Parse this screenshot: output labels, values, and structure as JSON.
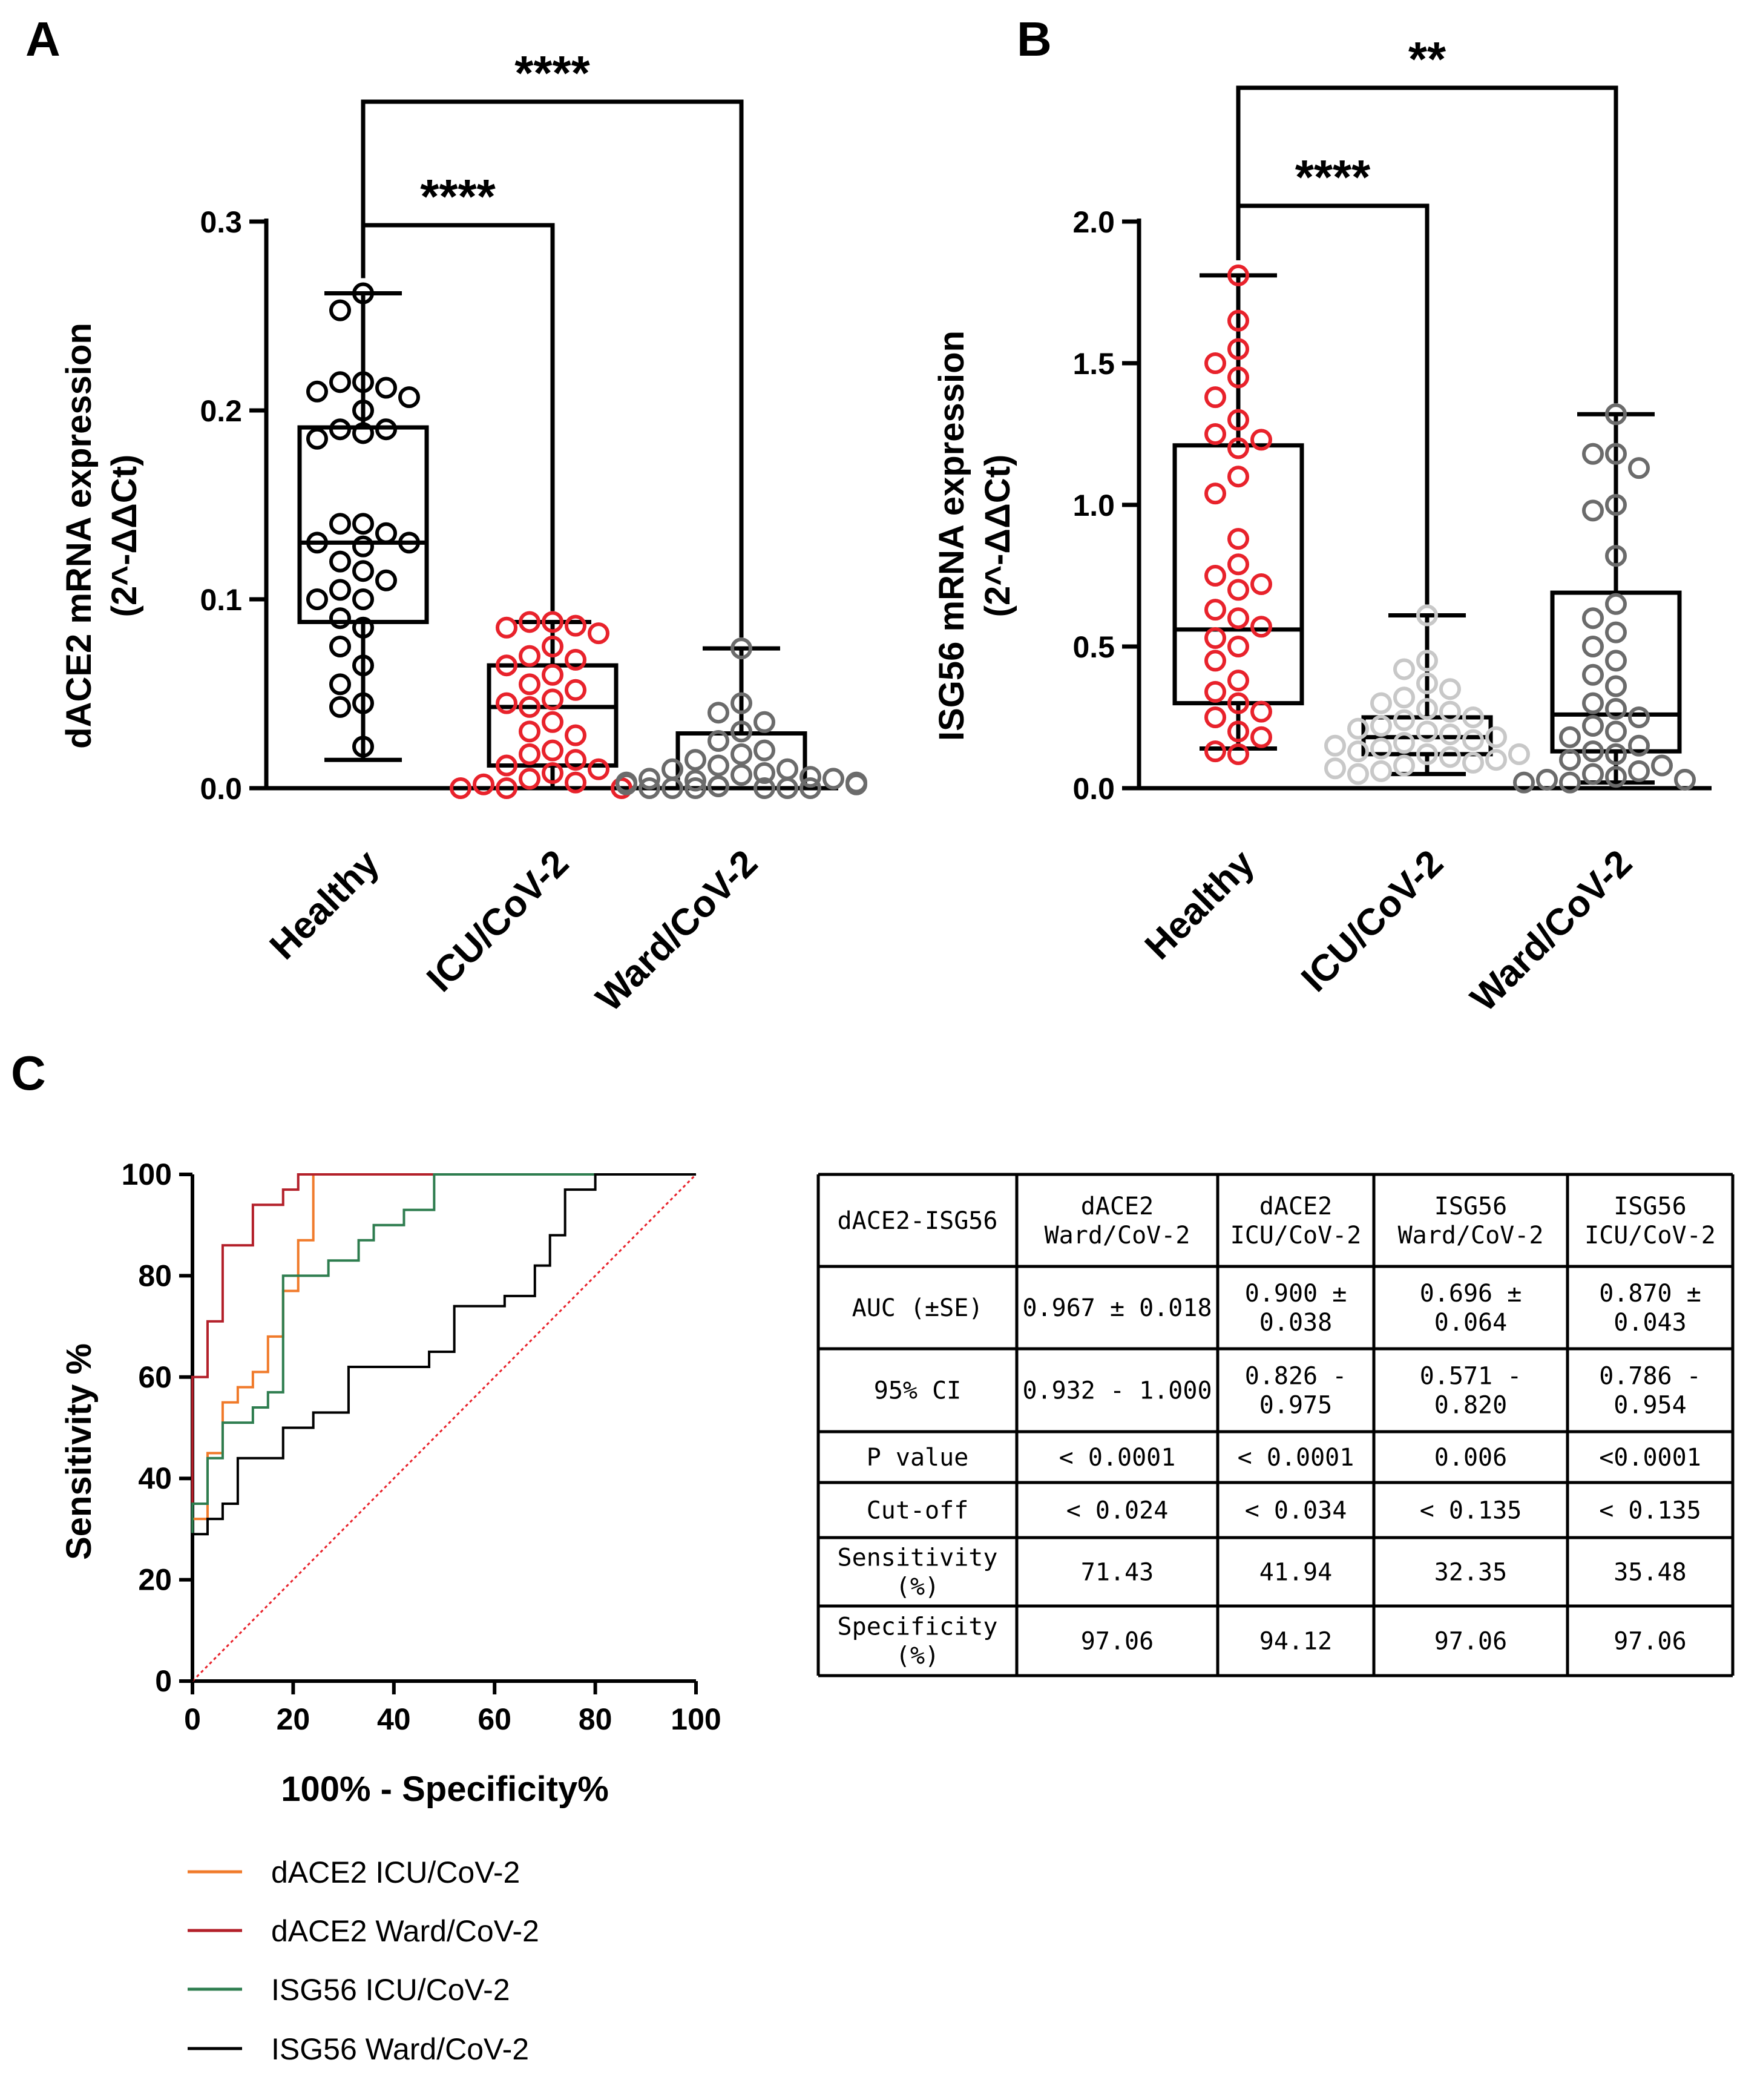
{
  "panels": {
    "a": "A",
    "b": "B",
    "c": "C"
  },
  "chart_data": [
    {
      "type": "box",
      "panel": "A",
      "ylabel_line1": "dACE2 mRNA expression",
      "ylabel_line2": "(2^-ΔΔCt)",
      "ylim": [
        0,
        0.3
      ],
      "yticks": [
        "0.0",
        "0.1",
        "0.2",
        "0.3"
      ],
      "ytick_values": [
        0,
        0.1,
        0.2,
        0.3
      ],
      "categories": [
        "Healthy",
        "ICU/CoV-2",
        "Ward/CoV-2"
      ],
      "colors": [
        "#000000",
        "#e8222b",
        "#6b6b6b"
      ],
      "boxes": [
        {
          "min": 0.015,
          "q1": 0.088,
          "median": 0.13,
          "q3": 0.191,
          "max": 0.262
        },
        {
          "min": 0.0,
          "q1": 0.012,
          "median": 0.043,
          "q3": 0.065,
          "max": 0.088
        },
        {
          "min": 0.0,
          "q1": 0.0,
          "median": 0.0,
          "q3": 0.029,
          "max": 0.074
        }
      ],
      "points": [
        [
          0.262,
          0.253,
          0.215,
          0.215,
          0.212,
          0.21,
          0.207,
          0.2,
          0.19,
          0.19,
          0.188,
          0.185,
          0.14,
          0.14,
          0.135,
          0.13,
          0.13,
          0.128,
          0.12,
          0.115,
          0.11,
          0.105,
          0.1,
          0.1,
          0.09,
          0.085,
          0.075,
          0.065,
          0.055,
          0.045,
          0.043,
          0.022
        ],
        [
          0.088,
          0.088,
          0.086,
          0.085,
          0.082,
          0.075,
          0.07,
          0.068,
          0.065,
          0.06,
          0.055,
          0.052,
          0.047,
          0.045,
          0.043,
          0.035,
          0.03,
          0.028,
          0.02,
          0.018,
          0.015,
          0.012,
          0.01,
          0.008,
          0.005,
          0.003,
          0.002,
          0.0,
          0.0,
          0.0
        ],
        [
          0.074,
          0.045,
          0.04,
          0.035,
          0.03,
          0.025,
          0.02,
          0.018,
          0.015,
          0.012,
          0.01,
          0.01,
          0.008,
          0.007,
          0.006,
          0.005,
          0.005,
          0.004,
          0.003,
          0.003,
          0.002,
          0.002,
          0.001,
          0.001,
          0.0,
          0.0,
          0.0,
          0.0,
          0.0,
          0.0
        ]
      ],
      "significance": [
        {
          "label": "****",
          "from": 0,
          "to": 1
        },
        {
          "label": "****",
          "from": 0,
          "to": 2
        }
      ]
    },
    {
      "type": "box",
      "panel": "B",
      "ylabel_line1": "ISG56 mRNA expression",
      "ylabel_line2": "(2^-ΔΔCt)",
      "ylim": [
        0,
        2.0
      ],
      "yticks": [
        "0.0",
        "0.5",
        "1.0",
        "1.5",
        "2.0"
      ],
      "ytick_values": [
        0,
        0.5,
        1.0,
        1.5,
        2.0
      ],
      "categories": [
        "Healthy",
        "ICU/CoV-2",
        "Ward/CoV-2"
      ],
      "colors": [
        "#e8222b",
        "#c8c8c8",
        "#6b6b6b"
      ],
      "boxes": [
        {
          "min": 0.14,
          "q1": 0.3,
          "median": 0.56,
          "q3": 1.21,
          "max": 1.81
        },
        {
          "min": 0.05,
          "q1": 0.12,
          "median": 0.18,
          "q3": 0.25,
          "max": 0.61
        },
        {
          "min": 0.02,
          "q1": 0.13,
          "median": 0.26,
          "q3": 0.69,
          "max": 1.32
        }
      ],
      "points": [
        [
          1.81,
          1.65,
          1.55,
          1.5,
          1.45,
          1.38,
          1.3,
          1.25,
          1.23,
          1.2,
          1.1,
          1.04,
          0.88,
          0.79,
          0.75,
          0.72,
          0.7,
          0.63,
          0.6,
          0.57,
          0.53,
          0.5,
          0.45,
          0.38,
          0.34,
          0.3,
          0.27,
          0.25,
          0.2,
          0.18,
          0.13,
          0.12
        ],
        [
          0.61,
          0.45,
          0.42,
          0.37,
          0.35,
          0.32,
          0.3,
          0.28,
          0.27,
          0.25,
          0.24,
          0.22,
          0.21,
          0.2,
          0.19,
          0.18,
          0.17,
          0.16,
          0.15,
          0.14,
          0.13,
          0.12,
          0.12,
          0.11,
          0.1,
          0.09,
          0.08,
          0.07,
          0.06,
          0.05
        ],
        [
          1.32,
          1.18,
          1.18,
          1.13,
          1.0,
          0.98,
          0.82,
          0.65,
          0.6,
          0.55,
          0.5,
          0.45,
          0.4,
          0.36,
          0.3,
          0.28,
          0.25,
          0.22,
          0.2,
          0.18,
          0.15,
          0.13,
          0.12,
          0.1,
          0.08,
          0.06,
          0.05,
          0.04,
          0.03,
          0.03,
          0.02,
          0.02
        ]
      ],
      "significance": [
        {
          "label": "****",
          "from": 0,
          "to": 1
        },
        {
          "label": "**",
          "from": 0,
          "to": 2
        }
      ]
    },
    {
      "type": "line",
      "panel": "C",
      "xlabel": "100% - Specificity%",
      "ylabel": "Sensitivity %",
      "xlim": [
        0,
        100
      ],
      "ylim": [
        0,
        100
      ],
      "xticks": [
        "0",
        "20",
        "40",
        "60",
        "80",
        "100"
      ],
      "yticks": [
        "0",
        "20",
        "40",
        "60",
        "80",
        "100"
      ],
      "tick_values": [
        0,
        20,
        40,
        60,
        80,
        100
      ],
      "reference_line": {
        "x": [
          0,
          100
        ],
        "y": [
          0,
          100
        ],
        "color": "#e8222b",
        "style": "dotted"
      },
      "series": [
        {
          "name": "dACE2 ICU/CoV-2",
          "color": "#f07a2a",
          "x": [
            0,
            0,
            3,
            3,
            6,
            6,
            9,
            9,
            12,
            12,
            15,
            15,
            18,
            18,
            21,
            21,
            24,
            24,
            100
          ],
          "y": [
            0,
            32,
            32,
            45,
            45,
            55,
            55,
            58,
            58,
            61,
            61,
            68,
            68,
            77,
            77,
            87,
            87,
            100,
            100
          ]
        },
        {
          "name": "dACE2 Ward/CoV-2",
          "color": "#b3202a",
          "x": [
            0,
            0,
            3,
            3,
            6,
            6,
            12,
            12,
            18,
            18,
            21,
            21,
            100
          ],
          "y": [
            0,
            60,
            60,
            71,
            71,
            86,
            86,
            94,
            94,
            97,
            97,
            100,
            100
          ]
        },
        {
          "name": "ISG56 ICU/CoV-2",
          "color": "#2e7d4f",
          "x": [
            0,
            0,
            3,
            3,
            6,
            6,
            12,
            12,
            15,
            15,
            18,
            18,
            27,
            27,
            33,
            33,
            36,
            36,
            42,
            42,
            48,
            48,
            100
          ],
          "y": [
            0,
            35,
            35,
            44,
            44,
            51,
            51,
            54,
            54,
            57,
            57,
            80,
            80,
            83,
            83,
            87,
            87,
            90,
            90,
            93,
            93,
            100,
            100
          ]
        },
        {
          "name": "ISG56 Ward/CoV-2",
          "color": "#000000",
          "x": [
            0,
            0,
            3,
            3,
            6,
            6,
            9,
            9,
            18,
            18,
            24,
            24,
            31,
            31,
            47,
            47,
            52,
            52,
            62,
            62,
            68,
            68,
            71,
            71,
            74,
            74,
            80,
            80,
            85,
            85,
            100
          ],
          "y": [
            0,
            29,
            29,
            32,
            32,
            35,
            35,
            44,
            44,
            50,
            50,
            53,
            53,
            62,
            62,
            65,
            65,
            74,
            74,
            76,
            76,
            82,
            82,
            88,
            88,
            97,
            97,
            100,
            100,
            100,
            100
          ]
        }
      ]
    }
  ],
  "table": {
    "header": [
      "dACE2-ISG56",
      "dACE2\nWard/CoV-2",
      "dACE2\nICU/CoV-2",
      "ISG56\nWard/CoV-2",
      "ISG56\nICU/CoV-2"
    ],
    "rows": [
      [
        "AUC (±SE)",
        "0.967 ± 0.018",
        "0.900 ±\n0.038",
        "0.696 ±\n0.064",
        "0.870 ±\n0.043"
      ],
      [
        "95% CI",
        "0.932 - 1.000",
        "0.826 -\n0.975",
        "0.571 -\n0.820",
        "0.786 -\n0.954"
      ],
      [
        "P value",
        "< 0.0001",
        "< 0.0001",
        "0.006",
        "<0.0001"
      ],
      [
        "Cut-off",
        "< 0.024",
        "<  0.034",
        "< 0.135",
        "< 0.135"
      ],
      [
        "Sensitivity\n(%)",
        "71.43",
        "41.94",
        "32.35",
        "35.48"
      ],
      [
        "Specificity\n(%)",
        "97.06",
        "94.12",
        "97.06",
        "97.06"
      ]
    ]
  }
}
